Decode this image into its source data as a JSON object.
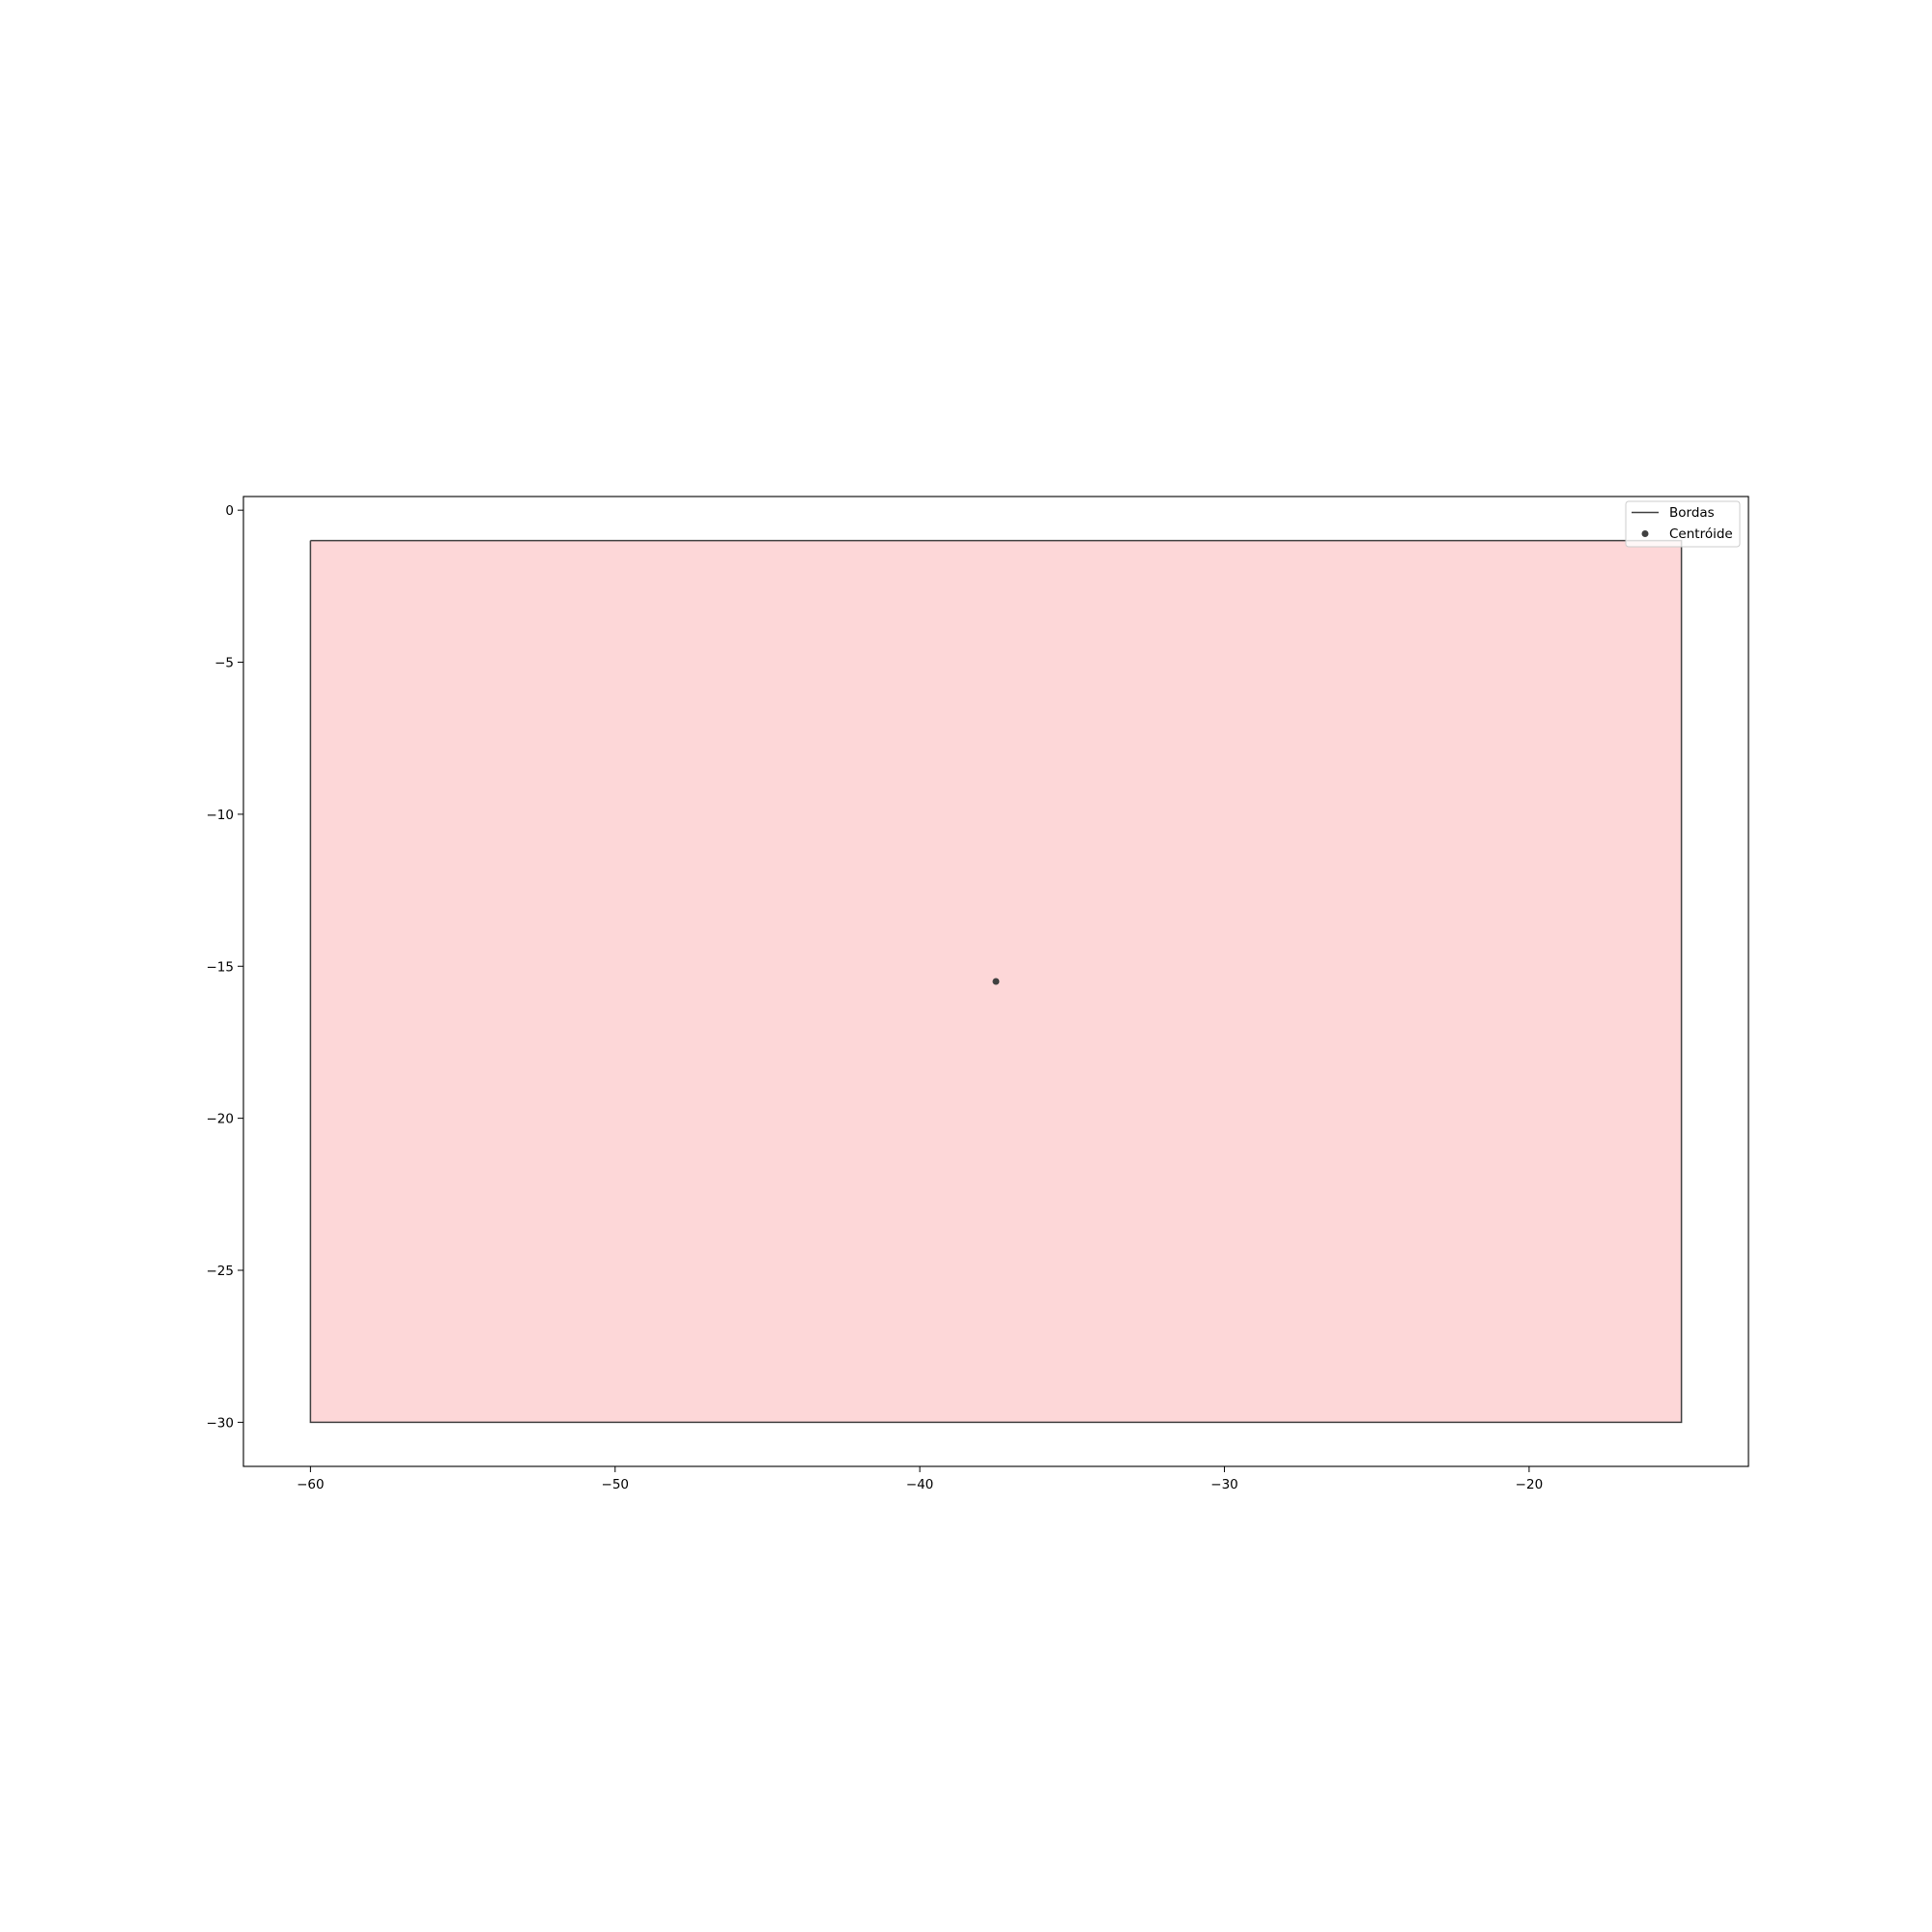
{
  "chart_data": {
    "type": "area",
    "title": "",
    "xlabel": "",
    "ylabel": "",
    "xlim": [
      -62.2,
      -12.8
    ],
    "ylim": [
      -31.45,
      0.45
    ],
    "xticks": [
      -60,
      -50,
      -40,
      -30,
      -20
    ],
    "yticks": [
      0,
      -5,
      -10,
      -15,
      -20,
      -25,
      -30
    ],
    "xtick_labels": [
      "−60",
      "−50",
      "−40",
      "−30",
      "−20"
    ],
    "ytick_labels": [
      "0",
      "−5",
      "−10",
      "−15",
      "−20",
      "−25",
      "−30"
    ],
    "grid": false,
    "polygon": {
      "vertices": [
        [
          -60,
          -1
        ],
        [
          -15,
          -1
        ],
        [
          -15,
          -30
        ],
        [
          -60,
          -30
        ],
        [
          -60,
          -1
        ]
      ],
      "fill_color": "#fdd7d8",
      "edge_color": "#404040"
    },
    "centroid": {
      "x": -37.5,
      "y": -15.5,
      "color": "#404040"
    },
    "legend": {
      "location": "upper right",
      "entries": [
        {
          "label": "Bordas",
          "marker": "line"
        },
        {
          "label": "Centróide",
          "marker": "point"
        }
      ]
    }
  }
}
